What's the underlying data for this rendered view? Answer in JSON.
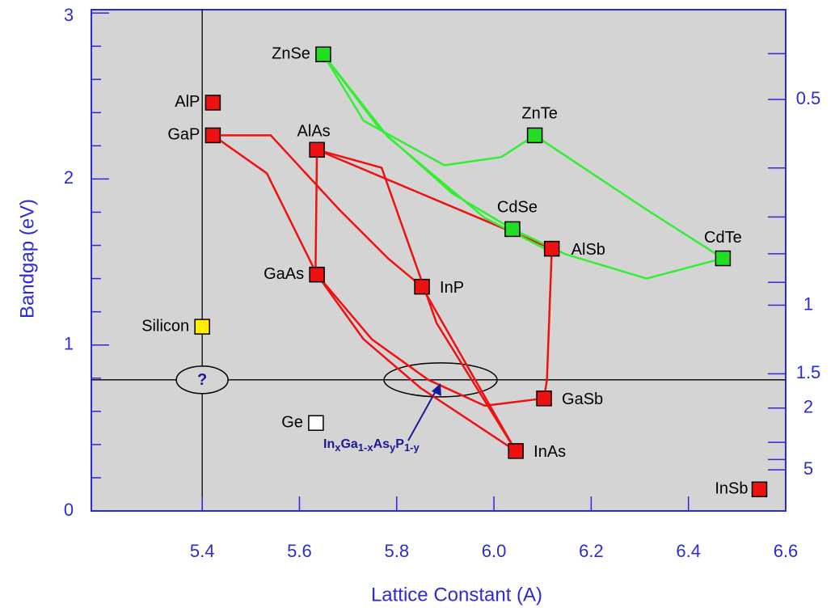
{
  "chart_data": {
    "type": "scatter",
    "xlabel": "Lattice Constant  (A)",
    "ylabel": "Bandgap  (eV)",
    "xlim": [
      5.172,
      6.6
    ],
    "xticks": [
      5.4,
      5.6,
      5.8,
      {
        "value": 6.0,
        "label": "6.0"
      },
      6.2,
      6.4,
      6.6
    ],
    "ylim": [
      0,
      3.02
    ],
    "yticks": [
      0,
      1,
      2,
      3
    ],
    "yminorticks": [
      0.2,
      0.4,
      0.6,
      0.8,
      1.2,
      1.4,
      1.6,
      1.8,
      2.2,
      2.4,
      2.6,
      2.8
    ],
    "y2scale": "reciprocal",
    "y2ticks": [
      0.5,
      1,
      1.5,
      2,
      5
    ],
    "y2minorticks": [
      0.45,
      0.6,
      0.7,
      0.8,
      0.9,
      3,
      4
    ],
    "axis_color": "#2b2bd9",
    "plot_background": "#d4d4d4",
    "points": [
      {
        "name": "ZnSe",
        "x": 5.649,
        "y": 2.751,
        "color": "#22dd22"
      },
      {
        "name": "AlP",
        "x": 5.422,
        "y": 2.46,
        "color": "#ee1111"
      },
      {
        "name": "GaP",
        "x": 5.422,
        "y": 2.263,
        "color": "#ee1111"
      },
      {
        "name": "AlAs",
        "x": 5.636,
        "y": 2.176,
        "color": "#ee1111"
      },
      {
        "name": "ZnTe",
        "x": 6.084,
        "y": 2.263,
        "color": "#22dd22"
      },
      {
        "name": "CdSe",
        "x": 6.038,
        "y": 1.698,
        "color": "#22dd22"
      },
      {
        "name": "AlSb",
        "x": 6.119,
        "y": 1.58,
        "color": "#ee1111"
      },
      {
        "name": "CdTe",
        "x": 6.471,
        "y": 1.522,
        "color": "#22dd22"
      },
      {
        "name": "GaAs",
        "x": 5.636,
        "y": 1.424,
        "color": "#ee1111"
      },
      {
        "name": "InP",
        "x": 5.852,
        "y": 1.351,
        "color": "#ee1111"
      },
      {
        "name": "Silicon",
        "x": 5.4,
        "y": 1.11,
        "color": "#ffee00"
      },
      {
        "name": "Ge",
        "x": 5.634,
        "y": 0.53,
        "color": "#ffffff"
      },
      {
        "name": "GaSb",
        "x": 6.103,
        "y": 0.678,
        "color": "#ee1111"
      },
      {
        "name": "InAs",
        "x": 6.045,
        "y": 0.361,
        "color": "#ee1111"
      },
      {
        "name": "InSb",
        "x": 6.546,
        "y": 0.13,
        "color": "#ee1111"
      }
    ],
    "curves": [
      {
        "color": "#ee1111",
        "x": [
          5.422,
          5.533,
          5.636
        ],
        "y": [
          2.263,
          2.034,
          1.424
        ]
      },
      {
        "color": "#ee1111",
        "x": [
          5.422,
          5.541,
          5.682,
          5.782,
          5.852
        ],
        "y": [
          2.263,
          2.263,
          1.815,
          1.522,
          1.351
        ]
      },
      {
        "color": "#ee1111",
        "x": [
          5.636,
          5.633
        ],
        "y": [
          2.176,
          1.424
        ]
      },
      {
        "color": "#ee1111",
        "x": [
          5.636,
          6.119
        ],
        "y": [
          2.176,
          1.58
        ]
      },
      {
        "color": "#ee1111",
        "x": [
          5.636,
          5.769,
          5.882,
          6.045
        ],
        "y": [
          2.176,
          2.068,
          1.132,
          0.361
        ]
      },
      {
        "color": "#ee1111",
        "x": [
          5.636,
          5.732,
          5.849,
          6.045
        ],
        "y": [
          1.424,
          1.034,
          0.741,
          0.361
        ]
      },
      {
        "color": "#ee1111",
        "x": [
          5.636,
          5.749,
          5.865,
          5.981,
          6.103
        ],
        "y": [
          1.424,
          1.034,
          0.79,
          0.634,
          0.678
        ]
      },
      {
        "color": "#ee1111",
        "x": [
          5.852,
          6.045
        ],
        "y": [
          1.351,
          0.361
        ]
      },
      {
        "color": "#ee1111",
        "x": [
          6.119,
          6.109,
          6.103
        ],
        "y": [
          1.58,
          0.79,
          0.678
        ]
      },
      {
        "color": "#33ee33",
        "x": [
          5.649,
          5.732,
          5.898,
          6.015,
          6.084
        ],
        "y": [
          2.751,
          2.351,
          2.083,
          2.132,
          2.263
        ]
      },
      {
        "color": "#33ee33",
        "x": [
          5.649,
          5.765,
          5.915,
          6.038
        ],
        "y": [
          2.751,
          2.302,
          1.912,
          1.698
        ]
      },
      {
        "color": "#33ee33",
        "x": [
          6.084,
          6.314,
          6.471
        ],
        "y": [
          2.263,
          1.815,
          1.522
        ]
      },
      {
        "color": "#33ee33",
        "x": [
          6.038,
          6.148,
          6.314,
          6.471
        ],
        "y": [
          1.698,
          1.546,
          1.4,
          1.522
        ]
      },
      {
        "color": "#33ee33",
        "x": [
          5.649,
          5.782,
          5.981,
          6.131
        ],
        "y": [
          2.751,
          2.254,
          1.766,
          1.541
        ]
      }
    ],
    "reference_lines": {
      "x": 5.4,
      "y": 0.79
    },
    "question_mark": "?",
    "alloy_label": [
      "In",
      "x",
      "Ga",
      "1-x",
      "As",
      "y",
      "P",
      "1-y"
    ]
  }
}
